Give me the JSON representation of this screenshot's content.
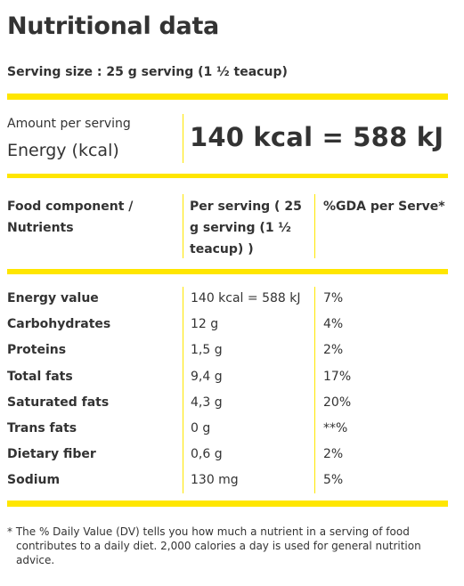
{
  "title": "Nutritional data",
  "serving_size": "Serving size : 25 g serving (1 ½ teacup)",
  "amount_per_serving": "Amount per serving",
  "energy_label": "Energy (kcal)",
  "energy_value": "140 kcal = 588 kJ",
  "table": {
    "headers": [
      "Food component / Nutrients",
      "Per serving ( 25 g serving (1 ½ teacup) )",
      "%GDA per Serve*"
    ],
    "rows": [
      {
        "nutrient": "Energy value",
        "per_serving": "140 kcal = 588 kJ",
        "gda": "7%"
      },
      {
        "nutrient": "Carbohydrates",
        "per_serving": "12 g",
        "gda": "4%"
      },
      {
        "nutrient": "Proteins",
        "per_serving": "1,5 g",
        "gda": "2%"
      },
      {
        "nutrient": "Total fats",
        "per_serving": "9,4 g",
        "gda": "17%"
      },
      {
        "nutrient": "Saturated fats",
        "per_serving": "4,3 g",
        "gda": "20%"
      },
      {
        "nutrient": "Trans fats",
        "per_serving": "0 g",
        "gda": "**%"
      },
      {
        "nutrient": "Dietary fiber",
        "per_serving": "0,6 g",
        "gda": "2%"
      },
      {
        "nutrient": "Sodium",
        "per_serving": "130 mg",
        "gda": "5%"
      }
    ]
  },
  "footnote": "* The % Daily Value (DV) tells you how much a nutrient in a serving of food contributes to a daily diet. 2,000 calories a day is used for general nutrition advice.",
  "colors": {
    "accent": "#ffe600",
    "text": "#333333"
  }
}
